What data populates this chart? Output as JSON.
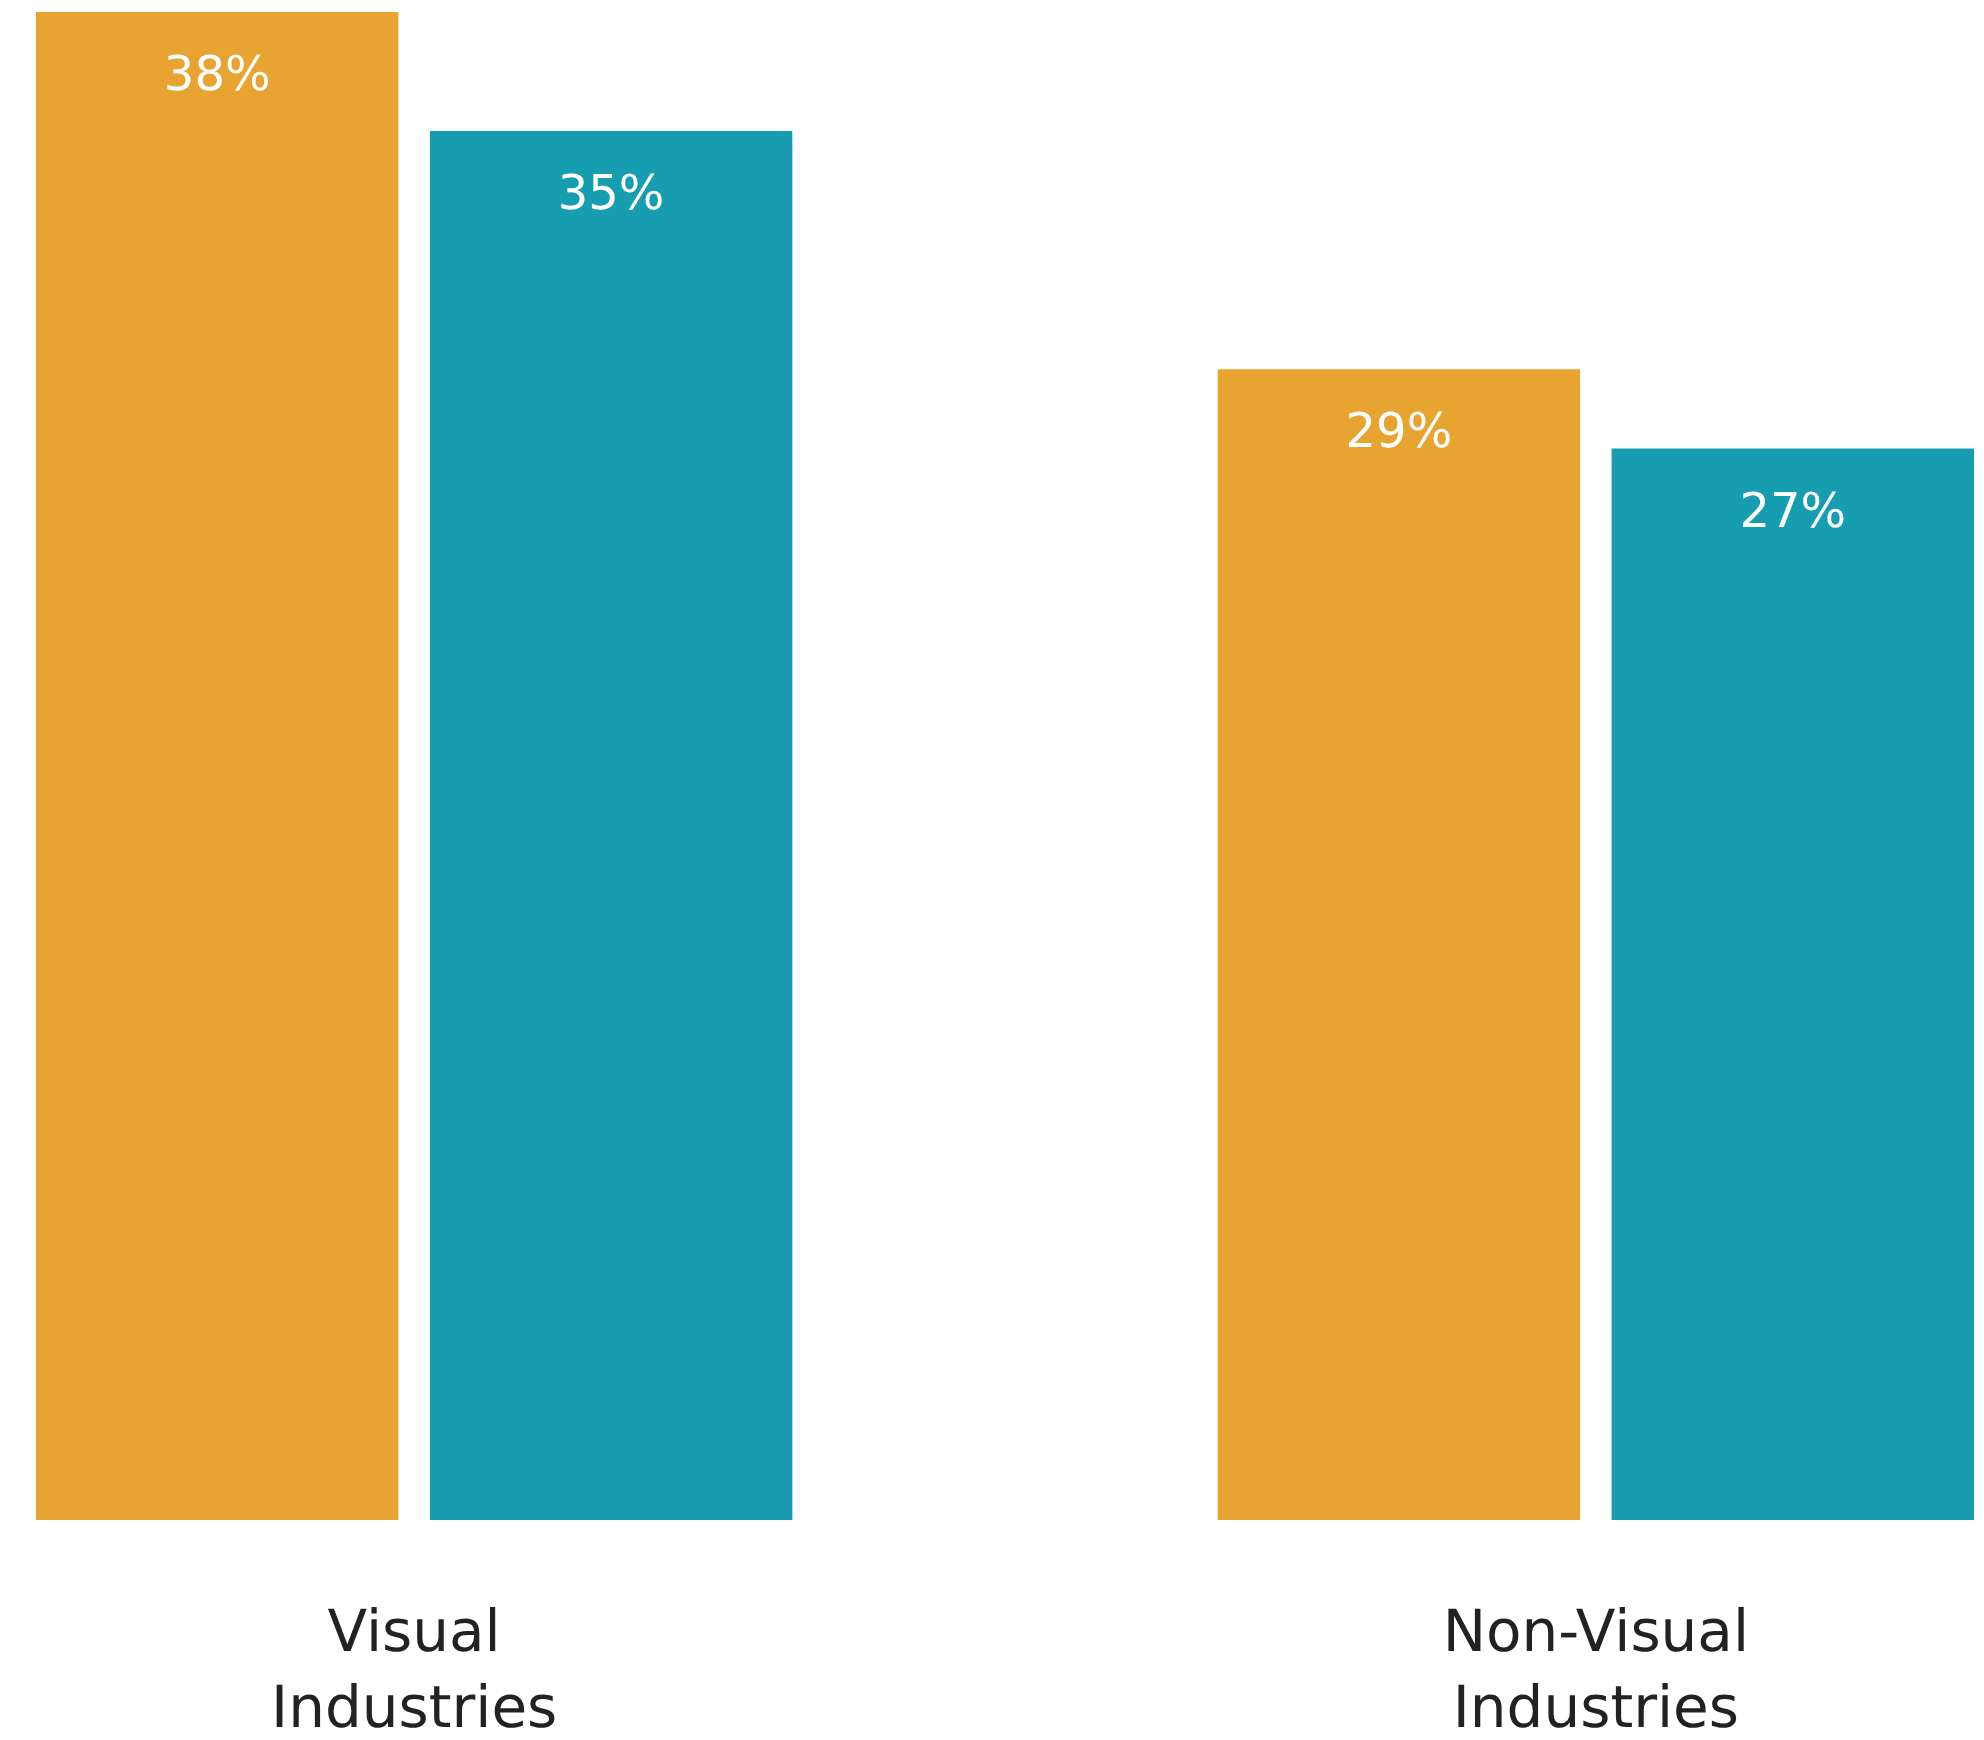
{
  "chart_data": {
    "type": "bar",
    "categories": [
      "Visual Industries",
      "Non-Visual Industries"
    ],
    "series": [
      {
        "color": "#e8a430",
        "values": [
          38,
          29
        ],
        "value_labels": [
          "38%",
          "29%"
        ]
      },
      {
        "color": "#179db0",
        "values": [
          35,
          27
        ],
        "value_labels": [
          "35%",
          "27%"
        ]
      }
    ]
  }
}
